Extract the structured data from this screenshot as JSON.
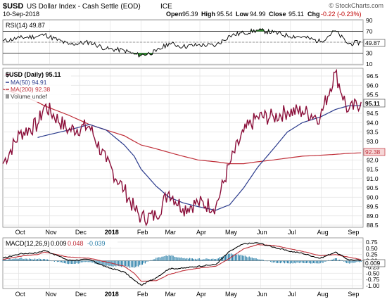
{
  "header": {
    "ticker": "$USD",
    "name": "US Dollar Index - Cash Settle (EOD)",
    "exchange": "ICE",
    "date": "10-Sep-2018",
    "watermark": "© StockCharts.com",
    "open_label": "Open",
    "open": "95.39",
    "high_label": "High",
    "high": "95.54",
    "low_label": "Low",
    "low": "94.99",
    "close_label": "Close",
    "close": "95.11",
    "chg_label": "Chg",
    "chg": "-0.22 (-0.23%)"
  },
  "rsi": {
    "label": "RSI(14) 49.87",
    "last": "49.87",
    "ticks": [
      "90",
      "70",
      "50",
      "30",
      "10"
    ]
  },
  "price": {
    "legend_main": "$USD (Daily) 95.11",
    "legend_ma50": "MA(50) 94.91",
    "legend_ma200": "MA(200) 92.38",
    "legend_volume": "Volume undef",
    "last_price": "95.11",
    "last_ma200": "92.38",
    "ticks": [
      "96.5",
      "96.0",
      "95.5",
      "95.0",
      "94.5",
      "94.0",
      "93.5",
      "93.0",
      "92.5",
      "92.0",
      "91.5",
      "91.0",
      "90.5",
      "90.0",
      "89.5",
      "89.0",
      "88.5"
    ]
  },
  "macd": {
    "label": "MACD(12,26,9)",
    "macd_value": "0.009",
    "signal_value": "0.048",
    "hist_value": "-0.039",
    "last": "0.009",
    "ticks": [
      "0.75",
      "0.50",
      "0.25",
      "0.00",
      "-0.25",
      "-0.50",
      "-0.75",
      "-1.00"
    ]
  },
  "xaxis": {
    "labels": [
      "Oct",
      "Nov",
      "Dec",
      "2018",
      "Feb",
      "Mar",
      "Apr",
      "May",
      "Jun",
      "Jul",
      "Aug",
      "Sep"
    ]
  },
  "colors": {
    "price": "#8b0f3a",
    "ma50": "#2a3a8c",
    "ma200": "#c0303a",
    "rsi_fill": "#2e8b2e",
    "rsi_line": "#000000",
    "macd_hist": "#2b7fa8",
    "signal": "#c0303a",
    "grid": "#e2e2e2"
  },
  "chart_data": {
    "type": "line",
    "title": "$USD US Dollar Index - Cash Settle (EOD) ICE",
    "x": [
      "2017-09-15",
      "2017-10-02",
      "2017-10-20",
      "2017-10-27",
      "2017-11-20",
      "2017-12-11",
      "2017-12-28",
      "2018-01-15",
      "2018-01-25",
      "2018-02-01",
      "2018-02-16",
      "2018-03-01",
      "2018-03-15",
      "2018-03-30",
      "2018-04-17",
      "2018-05-01",
      "2018-05-15",
      "2018-05-29",
      "2018-06-14",
      "2018-06-28",
      "2018-07-13",
      "2018-07-31",
      "2018-08-15",
      "2018-08-28",
      "2018-09-10"
    ],
    "series": [
      {
        "name": "$USD (Daily)",
        "values": [
          91.8,
          93.4,
          93.9,
          94.9,
          93.6,
          93.8,
          91.9,
          90.4,
          89.4,
          88.9,
          89.0,
          90.3,
          89.4,
          89.7,
          89.5,
          91.8,
          93.5,
          94.3,
          94.3,
          94.6,
          94.6,
          94.3,
          96.7,
          94.6,
          95.11
        ]
      },
      {
        "name": "MA(50)",
        "values": [
          null,
          null,
          93.2,
          93.3,
          93.6,
          93.9,
          93.6,
          92.8,
          92.2,
          91.5,
          90.6,
          90.0,
          89.7,
          89.5,
          89.3,
          89.6,
          90.5,
          91.6,
          92.6,
          93.5,
          94.0,
          94.3,
          94.7,
          94.9,
          94.91
        ]
      },
      {
        "name": "MA(200)",
        "values": [
          95.8,
          95.5,
          95.1,
          94.9,
          94.4,
          93.9,
          93.6,
          93.3,
          93.0,
          92.8,
          92.6,
          92.4,
          92.2,
          92.0,
          91.9,
          91.8,
          91.8,
          91.9,
          92.0,
          92.1,
          92.2,
          92.25,
          92.3,
          92.35,
          92.38
        ]
      },
      {
        "name": "RSI(14)",
        "values": [
          52,
          58,
          61,
          64,
          46,
          50,
          38,
          35,
          28,
          26,
          33,
          48,
          42,
          45,
          44,
          62,
          67,
          72,
          68,
          62,
          60,
          51,
          71,
          47,
          49.87
        ]
      },
      {
        "name": "MACD(12,26,9)",
        "values": [
          0.1,
          0.28,
          0.32,
          0.42,
          0.02,
          0.05,
          -0.25,
          -0.45,
          -0.78,
          -0.98,
          -0.68,
          -0.32,
          -0.3,
          -0.22,
          -0.15,
          0.38,
          0.68,
          0.72,
          0.55,
          0.4,
          0.3,
          0.1,
          0.35,
          0.05,
          0.009
        ]
      },
      {
        "name": "Signal",
        "values": [
          0.05,
          0.18,
          0.25,
          0.35,
          0.15,
          0.1,
          -0.05,
          -0.22,
          -0.5,
          -0.82,
          -0.8,
          -0.55,
          -0.4,
          -0.3,
          -0.22,
          0.1,
          0.48,
          0.65,
          0.62,
          0.5,
          0.38,
          0.2,
          0.25,
          0.15,
          0.048
        ]
      }
    ],
    "panels": {
      "rsi": {
        "ylim": [
          10,
          90
        ],
        "reference_lines": [
          70,
          30
        ]
      },
      "price": {
        "ylim": [
          88.5,
          96.5
        ]
      },
      "macd": {
        "ylim": [
          -1.0,
          0.75
        ]
      }
    },
    "legend": "top-left",
    "grid": true
  }
}
